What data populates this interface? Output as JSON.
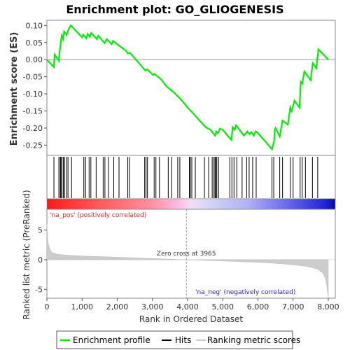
{
  "chart_data": {
    "type": "line",
    "title": "Enrichment plot: GO_GLIOGENESIS",
    "xlabel": "Rank in Ordered Dataset",
    "xlim": [
      0,
      8200
    ],
    "x_ticks": [
      "0",
      "1,000",
      "2,000",
      "3,000",
      "4,000",
      "5,000",
      "6,000",
      "7,000",
      "8,000"
    ],
    "x_tick_values": [
      0,
      1000,
      2000,
      3000,
      4000,
      5000,
      6000,
      7000,
      8000
    ],
    "es_panel": {
      "ylabel": "Enrichment score (ES)",
      "ylim": [
        -0.28,
        0.115
      ],
      "y_ticks": [
        "0.10",
        "0.05",
        "0.00",
        "-0.05",
        "-0.10",
        "-0.15",
        "-0.20",
        "-0.25"
      ],
      "y_tick_values": [
        0.1,
        0.05,
        0.0,
        -0.05,
        -0.1,
        -0.15,
        -0.2,
        -0.25
      ],
      "series": [
        {
          "name": "Enrichment profile",
          "color": "#00ee00",
          "points": [
            [
              0,
              0.0
            ],
            [
              200,
              -0.022
            ],
            [
              220,
              0.015
            ],
            [
              340,
              -0.003
            ],
            [
              360,
              0.022
            ],
            [
              390,
              0.045
            ],
            [
              420,
              0.07
            ],
            [
              460,
              0.06
            ],
            [
              490,
              0.082
            ],
            [
              560,
              0.072
            ],
            [
              620,
              0.09
            ],
            [
              680,
              0.1
            ],
            [
              1000,
              0.065
            ],
            [
              1030,
              0.073
            ],
            [
              1120,
              0.062
            ],
            [
              1160,
              0.075
            ],
            [
              1220,
              0.067
            ],
            [
              1260,
              0.078
            ],
            [
              1420,
              0.06
            ],
            [
              1460,
              0.07
            ],
            [
              1640,
              0.048
            ],
            [
              1700,
              0.06
            ],
            [
              1840,
              0.045
            ],
            [
              1880,
              0.055
            ],
            [
              2000,
              0.045
            ],
            [
              2260,
              0.025
            ],
            [
              2300,
              0.018
            ],
            [
              2360,
              0.02
            ],
            [
              2800,
              -0.032
            ],
            [
              2850,
              -0.028
            ],
            [
              3020,
              -0.045
            ],
            [
              3060,
              -0.042
            ],
            [
              3250,
              -0.058
            ],
            [
              3400,
              -0.078
            ],
            [
              3600,
              -0.095
            ],
            [
              3800,
              -0.115
            ],
            [
              4000,
              -0.14
            ],
            [
              4200,
              -0.162
            ],
            [
              4400,
              -0.185
            ],
            [
              4520,
              -0.198
            ],
            [
              4650,
              -0.205
            ],
            [
              4720,
              -0.215
            ],
            [
              4780,
              -0.222
            ],
            [
              4820,
              -0.21
            ],
            [
              4860,
              -0.215
            ],
            [
              4920,
              -0.202
            ],
            [
              5000,
              -0.205
            ],
            [
              5160,
              -0.225
            ],
            [
              5250,
              -0.235
            ],
            [
              5280,
              -0.198
            ],
            [
              5340,
              -0.205
            ],
            [
              5380,
              -0.192
            ],
            [
              5440,
              -0.2
            ],
            [
              5600,
              -0.222
            ],
            [
              5700,
              -0.21
            ],
            [
              5760,
              -0.218
            ],
            [
              5820,
              -0.212
            ],
            [
              5880,
              -0.222
            ],
            [
              5940,
              -0.21
            ],
            [
              6000,
              -0.215
            ],
            [
              6200,
              -0.238
            ],
            [
              6400,
              -0.262
            ],
            [
              6460,
              -0.238
            ],
            [
              6480,
              -0.205
            ],
            [
              6500,
              -0.2
            ],
            [
              6620,
              -0.225
            ],
            [
              6700,
              -0.178
            ],
            [
              6850,
              -0.19
            ],
            [
              6920,
              -0.14
            ],
            [
              6960,
              -0.15
            ],
            [
              7040,
              -0.12
            ],
            [
              7180,
              -0.14
            ],
            [
              7220,
              -0.065
            ],
            [
              7260,
              -0.07
            ],
            [
              7320,
              -0.035
            ],
            [
              7500,
              -0.06
            ],
            [
              7560,
              -0.01
            ],
            [
              7660,
              -0.025
            ],
            [
              7720,
              0.03
            ],
            [
              8000,
              0.0
            ]
          ]
        }
      ]
    },
    "hits": [
      200,
      340,
      380,
      400,
      430,
      470,
      500,
      560,
      600,
      700,
      1050,
      1100,
      1200,
      1250,
      1400,
      1600,
      1650,
      1750,
      1900,
      2050,
      2300,
      2350,
      2780,
      2820,
      2860,
      3050,
      3100,
      3200,
      3450,
      3550,
      3720,
      3780,
      4050,
      4080,
      4120,
      4220,
      4480,
      4600,
      4700,
      4750,
      4780,
      4800,
      4830,
      4880,
      5200,
      5260,
      5320,
      5400,
      5550,
      5680,
      5750,
      5850,
      5950,
      6400,
      6450,
      6620,
      6700,
      6920,
      7000,
      7200,
      7260,
      7350,
      7550,
      7700
    ],
    "ranked_panel": {
      "ylabel": "Ranked list metric (PreRanked)",
      "ylim": [
        -6.5,
        8.5
      ],
      "y_ticks": [
        "5",
        "0",
        "-5"
      ],
      "y_tick_values": [
        5,
        0,
        -5
      ],
      "zero_cross_label": "Zero cross at 3965",
      "zero_cross": 3965,
      "pos_label": "'na_pos' (positively correlated)",
      "neg_label": "'na_neg' (negatively correlated)",
      "profile": [
        [
          0,
          6.0
        ],
        [
          30,
          3.0
        ],
        [
          80,
          1.8
        ],
        [
          150,
          1.2
        ],
        [
          300,
          0.9
        ],
        [
          600,
          0.75
        ],
        [
          1000,
          0.62
        ],
        [
          2000,
          0.42
        ],
        [
          3000,
          0.2
        ],
        [
          3965,
          0.0
        ],
        [
          5000,
          -0.22
        ],
        [
          6000,
          -0.45
        ],
        [
          6500,
          -0.62
        ],
        [
          7000,
          -0.85
        ],
        [
          7400,
          -1.15
        ],
        [
          7700,
          -1.6
        ],
        [
          7850,
          -2.3
        ],
        [
          7920,
          -3.2
        ],
        [
          7960,
          -4.5
        ],
        [
          8000,
          -6.3
        ]
      ]
    },
    "legend": [
      "Enrichment profile",
      "Hits",
      "Ranking metric scores"
    ],
    "legend_placement": "bottom",
    "colors": {
      "es_line": "#00ee00",
      "hits": "#000000",
      "metric_fill": "#cccccc",
      "pos_label": "#e32222",
      "neg_label": "#2222e3",
      "zero_line": "#999999"
    }
  }
}
